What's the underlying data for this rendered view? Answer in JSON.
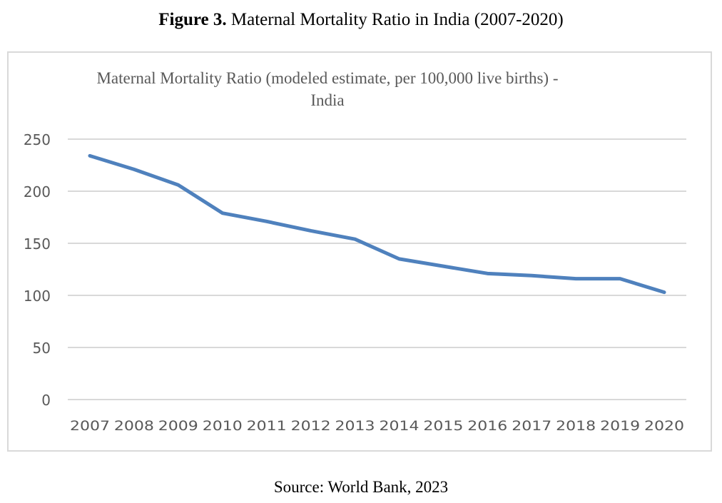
{
  "figure": {
    "label": "Figure 3.",
    "title": " Maternal Mortality Ratio in India (2007-2020)",
    "source": "Source: World Bank, 2023"
  },
  "chart_data": {
    "type": "line",
    "title_line1": "Maternal Mortality Ratio (modeled estimate, per 100,000 live births) -",
    "title_line2": "India",
    "xlabel": "",
    "ylabel": "",
    "categories": [
      "2007",
      "2008",
      "2009",
      "2010",
      "2011",
      "2012",
      "2013",
      "2014",
      "2015",
      "2016",
      "2017",
      "2018",
      "2019",
      "2020"
    ],
    "series": [
      {
        "name": "Maternal Mortality Ratio - India",
        "color": "#4f81bd",
        "values": [
          234,
          221,
          206,
          179,
          171,
          162,
          154,
          135,
          128,
          121,
          119,
          116,
          116,
          103
        ]
      }
    ],
    "ylim": [
      0,
      250
    ],
    "yticks": [
      0,
      50,
      100,
      150,
      200,
      250
    ],
    "grid": true,
    "legend": "none"
  }
}
